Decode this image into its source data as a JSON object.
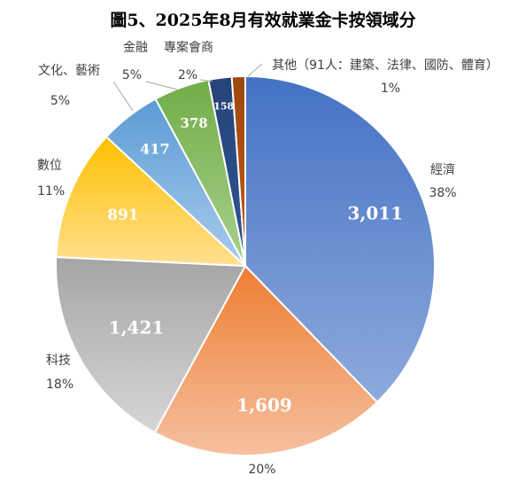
{
  "chart_data": {
    "type": "pie",
    "title": "圖5、2025年8月有效就業金卡按領域分",
    "slices": [
      {
        "category": "經濟",
        "value": 3011,
        "value_label": "3,011",
        "percent": "38%",
        "color": "#4472c4",
        "color_light": "#8eaadc"
      },
      {
        "category": "",
        "value": 1609,
        "value_label": "1,609",
        "percent": "20%",
        "color": "#ed7d31",
        "color_light": "#f6c0a0"
      },
      {
        "category": "科技",
        "value": 1421,
        "value_label": "1,421",
        "percent": "18%",
        "color": "#a5a5a5",
        "color_light": "#d6d6d6"
      },
      {
        "category": "數位",
        "value": 891,
        "value_label": "891",
        "percent": "11%",
        "color": "#ffc000",
        "color_light": "#ffe090"
      },
      {
        "category": "文化、藝術",
        "value": 417,
        "value_label": "417",
        "percent": "5%",
        "color": "#5b9bd5",
        "color_light": "#a9cbeb"
      },
      {
        "category": "金融",
        "value": 378,
        "value_label": "378",
        "percent": "5%",
        "color": "#70ad47",
        "color_light": "#a9d08e"
      },
      {
        "category": "專案會商",
        "value": 158,
        "value_label": "158",
        "percent": "2%",
        "color": "#264478",
        "color_light": "#2e5595"
      },
      {
        "category": "其他（91人：建築、法律、國防、體育）",
        "value": 91,
        "value_label": "",
        "percent": "1%",
        "color": "#9e480e",
        "color_light": "#c05a16"
      }
    ]
  }
}
